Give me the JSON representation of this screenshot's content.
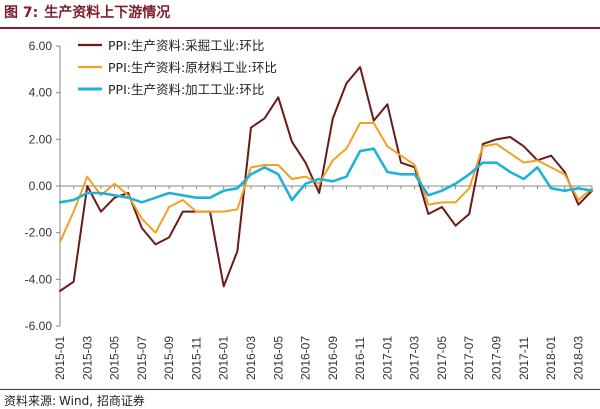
{
  "figure": {
    "label": "图 7:",
    "title": "生产资料上下游情况"
  },
  "source": {
    "label": "资料来源:",
    "text": "Wind, 招商证券"
  },
  "chart_data": {
    "type": "line",
    "title": "",
    "xlabel": "",
    "ylabel": "",
    "ylim": [
      -6,
      6
    ],
    "yticks": [
      "6.00",
      "4.00",
      "2.00",
      "0.00",
      "-2.00",
      "-4.00",
      "-6.00"
    ],
    "grid": false,
    "legend_position": "top-center",
    "x": [
      "2015-01",
      "2015-02",
      "2015-03",
      "2015-04",
      "2015-05",
      "2015-06",
      "2015-07",
      "2015-08",
      "2015-09",
      "2015-10",
      "2015-11",
      "2015-12",
      "2016-01",
      "2016-02",
      "2016-03",
      "2016-04",
      "2016-05",
      "2016-06",
      "2016-07",
      "2016-08",
      "2016-09",
      "2016-10",
      "2016-11",
      "2016-12",
      "2017-01",
      "2017-02",
      "2017-03",
      "2017-04",
      "2017-05",
      "2017-06",
      "2017-07",
      "2017-08",
      "2017-09",
      "2017-10",
      "2017-11",
      "2017-12",
      "2018-01",
      "2018-02",
      "2018-03",
      "2018-04"
    ],
    "series": [
      {
        "name": "PPI:生产资料:采掘工业:环比",
        "color": "#6b1a1a",
        "values": [
          -4.5,
          -4.1,
          0.0,
          -1.1,
          -0.5,
          -0.3,
          -1.8,
          -2.5,
          -2.2,
          -1.1,
          -1.1,
          -1.1,
          -4.3,
          -2.8,
          2.5,
          2.9,
          3.8,
          1.9,
          1.0,
          -0.3,
          2.9,
          4.4,
          5.1,
          2.8,
          3.5,
          1.0,
          0.8,
          -1.2,
          -0.9,
          -1.7,
          -1.2,
          1.8,
          2.0,
          2.1,
          1.7,
          1.1,
          1.3,
          0.6,
          -0.8,
          -0.2
        ]
      },
      {
        "name": "PPI:生产资料:原材料工业:环比",
        "color": "#f2a024",
        "values": [
          -2.4,
          -1.1,
          0.4,
          -0.4,
          0.1,
          -0.4,
          -1.4,
          -2.0,
          -0.9,
          -0.6,
          -1.1,
          -1.1,
          -1.1,
          -1.0,
          0.8,
          0.9,
          0.9,
          0.3,
          0.4,
          0.1,
          1.1,
          1.6,
          2.7,
          2.7,
          1.7,
          1.3,
          0.9,
          -0.8,
          -0.7,
          -0.7,
          -0.1,
          1.7,
          1.8,
          1.4,
          1.0,
          1.1,
          0.8,
          0.5,
          -0.6,
          -0.1
        ]
      },
      {
        "name": "PPI:生产资料:加工工业:环比",
        "color": "#1fb2d8",
        "values": [
          -0.7,
          -0.6,
          -0.3,
          -0.3,
          -0.4,
          -0.5,
          -0.7,
          -0.5,
          -0.3,
          -0.4,
          -0.5,
          -0.5,
          -0.2,
          -0.1,
          0.5,
          0.8,
          0.5,
          -0.6,
          0.1,
          0.3,
          0.2,
          0.4,
          1.5,
          1.6,
          0.6,
          0.5,
          0.5,
          -0.4,
          -0.2,
          0.1,
          0.5,
          1.0,
          1.0,
          0.6,
          0.3,
          0.8,
          -0.1,
          -0.2,
          -0.1,
          -0.2
        ]
      }
    ]
  }
}
